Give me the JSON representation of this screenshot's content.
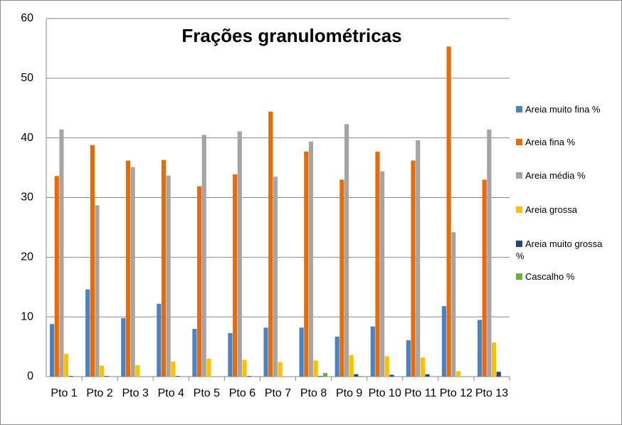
{
  "chart_data": {
    "type": "bar",
    "title": "Frações granulométricas",
    "categories": [
      "Pto 1",
      "Pto 2",
      "Pto 3",
      "Pto 4",
      "Pto 5",
      "Pto 6",
      "Pto 7",
      "Pto 8",
      "Pto 9",
      "Pto 10",
      "Pto 11",
      "Pto 12",
      "Pto 13"
    ],
    "series": [
      {
        "name": "Areia muito fina %",
        "color": "#4f81bd",
        "values": [
          8.8,
          14.6,
          9.8,
          12.2,
          8.0,
          7.3,
          8.2,
          8.2,
          6.7,
          8.4,
          6.1,
          11.8,
          9.5
        ]
      },
      {
        "name": "Areia fina %",
        "color": "#e46c0a",
        "values": [
          33.6,
          38.8,
          36.2,
          36.3,
          31.9,
          33.9,
          44.4,
          37.7,
          33.0,
          37.7,
          36.2,
          55.3,
          33.0
        ]
      },
      {
        "name": "Areia média %",
        "color": "#a5a5a5",
        "values": [
          41.4,
          28.7,
          35.1,
          33.7,
          40.5,
          41.1,
          33.5,
          39.4,
          42.3,
          34.4,
          39.6,
          24.2,
          41.4
        ]
      },
      {
        "name": "Areia grossa",
        "color": "#ffc000",
        "values": [
          3.8,
          1.8,
          1.9,
          2.5,
          3.0,
          2.8,
          2.4,
          2.7,
          3.6,
          3.4,
          3.2,
          0.9,
          5.7
        ]
      },
      {
        "name": "Areia muito grossa %",
        "color": "#264478",
        "values": [
          0.1,
          0.1,
          0,
          0.1,
          0,
          0.1,
          0,
          0.1,
          0.4,
          0.3,
          0.4,
          0,
          0.8
        ]
      },
      {
        "name": "Cascalho %",
        "color": "#70ad47",
        "values": [
          0,
          0,
          0,
          0,
          0,
          0,
          0,
          0.6,
          0.1,
          0,
          0,
          0,
          0
        ]
      }
    ],
    "ylim": [
      0,
      60
    ],
    "yticks": [
      0,
      10,
      20,
      30,
      40,
      50,
      60
    ],
    "grid": true,
    "legend": "right"
  }
}
